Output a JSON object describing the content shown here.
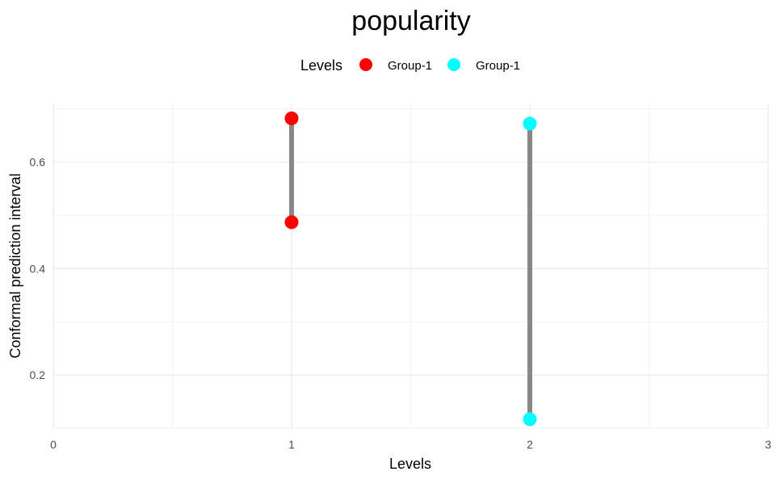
{
  "chart_data": {
    "type": "scatter",
    "title": "popularity",
    "xlabel": "Levels",
    "ylabel": "Conformal prediction interval",
    "xlim": [
      0,
      3
    ],
    "ylim": [
      0.1,
      0.71
    ],
    "x_ticks": [
      0,
      1,
      2,
      3
    ],
    "x_tick_labels": [
      "0",
      "1",
      "2",
      "3"
    ],
    "y_ticks": [
      0.2,
      0.4,
      0.6
    ],
    "y_tick_labels": [
      "0.2",
      "0.4",
      "0.6"
    ],
    "grid": true,
    "legend": {
      "title": "Levels",
      "position": "top",
      "entries": [
        {
          "label": "Group-1",
          "color": "#ff0000"
        },
        {
          "label": "Group-1",
          "color": "#00ffff"
        }
      ]
    },
    "intervals": [
      {
        "x": 1,
        "lower": 0.487,
        "upper": 0.682,
        "color": "#ff0000"
      },
      {
        "x": 2,
        "lower": 0.117,
        "upper": 0.672,
        "color": "#00ffff"
      }
    ],
    "segment_color": "#888888"
  }
}
